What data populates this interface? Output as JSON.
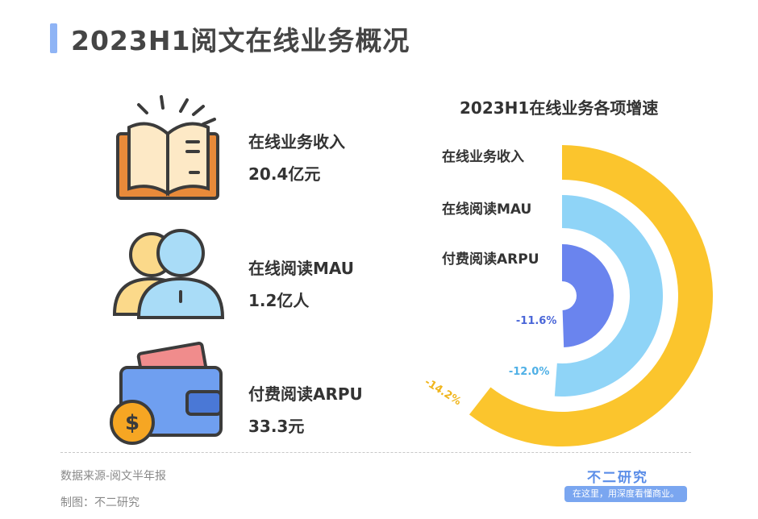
{
  "title": "2023H1阅文在线业务概况",
  "items": [
    {
      "label": "在线业务收入",
      "value": "20.4亿元",
      "icon": "open-book-icon"
    },
    {
      "label": "在线阅读MAU",
      "value": "1.2亿人",
      "icon": "users-icon"
    },
    {
      "label": "付费阅读ARPU",
      "value": "33.3元",
      "icon": "wallet-icon"
    }
  ],
  "chart_data": {
    "type": "radial-bar",
    "title": "2023H1在线业务各项增速",
    "categories": [
      "在线业务收入",
      "在线阅读MAU",
      "付费阅读ARPU"
    ],
    "values": [
      -14.2,
      -12.0,
      -11.6
    ],
    "data_labels": [
      "-14.2%",
      "-12.0%",
      "-11.6%"
    ],
    "colors": [
      "#fbc52d",
      "#8fd4f7",
      "#6a84ee"
    ]
  },
  "footer": {
    "source": "数据来源-阅文半年报",
    "credit": "制图：不二研究",
    "brand": "不二研究",
    "slogan": "在这里，用深度看懂商业。"
  }
}
